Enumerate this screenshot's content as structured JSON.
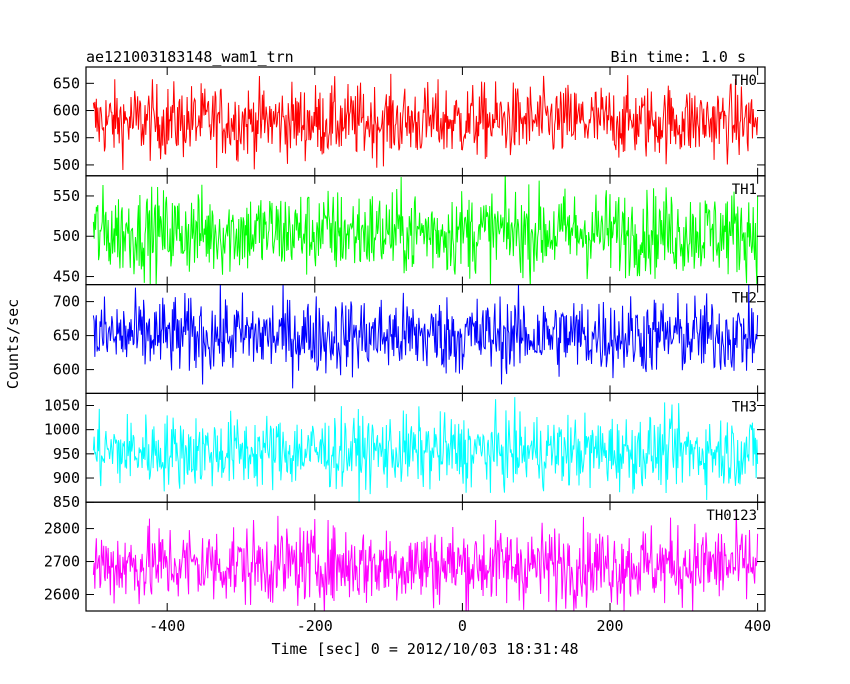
{
  "chart_data": {
    "type": "line",
    "title": "ae121003183148_wam1_trn",
    "subtitle": "Bin time: 1.0 s",
    "xlabel": "Time [sec] 0 = 2012/10/03 18:31:48",
    "ylabel": "Counts/sec",
    "xlim": [
      -510,
      410
    ],
    "xticks": [
      -400,
      -200,
      0,
      200,
      400
    ],
    "grid": false,
    "panels": [
      {
        "name": "TH0",
        "color": "#ff0000",
        "ylim": [
          480,
          680
        ],
        "yticks": [
          500,
          550,
          600,
          650
        ],
        "mean": 580,
        "amplitude": 45
      },
      {
        "name": "TH1",
        "color": "#00ff00",
        "ylim": [
          440,
          575
        ],
        "yticks": [
          450,
          500,
          550
        ],
        "mean": 505,
        "amplitude": 35
      },
      {
        "name": "TH2",
        "color": "#0000ff",
        "ylim": [
          565,
          725
        ],
        "yticks": [
          600,
          650,
          700
        ],
        "mean": 650,
        "amplitude": 38
      },
      {
        "name": "TH3",
        "color": "#00ffff",
        "ylim": [
          850,
          1075
        ],
        "yticks": [
          850,
          900,
          950,
          1000,
          1050
        ],
        "mean": 955,
        "amplitude": 50
      },
      {
        "name": "TH0123",
        "color": "#ff00ff",
        "ylim": [
          2550,
          2880
        ],
        "yticks": [
          2600,
          2700,
          2800
        ],
        "mean": 2690,
        "amplitude": 80
      }
    ]
  }
}
